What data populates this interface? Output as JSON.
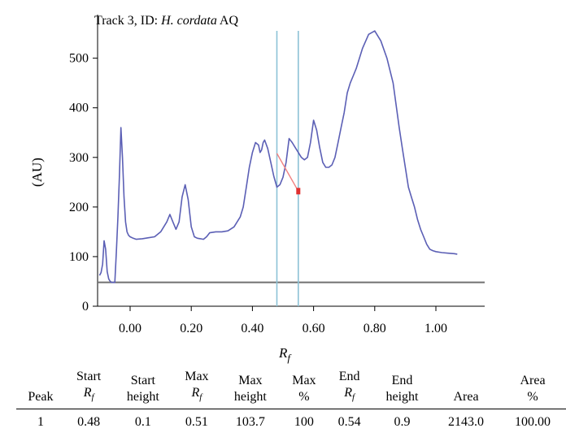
{
  "chart_data": {
    "type": "line",
    "title_prefix": "Track 3, ID: ",
    "title_species": "H. cordata",
    "title_suffix": " AQ",
    "xlabel_symbol": "R",
    "xlabel_subscript": "f",
    "ylabel": "(AU)",
    "xlim": [
      -0.12,
      1.17
    ],
    "ylim": [
      0,
      560
    ],
    "x_ticks": [
      "0.00",
      "0.20",
      "0.40",
      "0.60",
      "0.80",
      "1.00"
    ],
    "x_tick_values": [
      0.0,
      0.2,
      0.4,
      0.6,
      0.8,
      1.0
    ],
    "y_ticks": [
      "0",
      "100",
      "200",
      "300",
      "400",
      "500"
    ],
    "y_tick_values": [
      0,
      100,
      200,
      300,
      400,
      500
    ],
    "baseline": 48,
    "vertical_markers": [
      0.48,
      0.55
    ],
    "series": [
      {
        "color": "#5b5fb5",
        "x": [
          -0.1,
          -0.095,
          -0.09,
          -0.085,
          -0.08,
          -0.075,
          -0.07,
          -0.065,
          -0.06,
          -0.05,
          -0.045,
          -0.04,
          -0.035,
          -0.03,
          -0.025,
          -0.02,
          -0.015,
          -0.01,
          -0.005,
          0.0,
          0.01,
          0.02,
          0.04,
          0.06,
          0.08,
          0.1,
          0.12,
          0.13,
          0.14,
          0.15,
          0.16,
          0.17,
          0.18,
          0.19,
          0.2,
          0.21,
          0.22,
          0.23,
          0.24,
          0.25,
          0.26,
          0.28,
          0.3,
          0.32,
          0.34,
          0.36,
          0.37,
          0.38,
          0.39,
          0.4,
          0.41,
          0.42,
          0.425,
          0.43,
          0.435,
          0.44,
          0.45,
          0.46,
          0.47,
          0.48,
          0.49,
          0.5,
          0.51,
          0.52,
          0.53,
          0.54,
          0.55,
          0.56,
          0.57,
          0.58,
          0.59,
          0.6,
          0.61,
          0.62,
          0.63,
          0.64,
          0.65,
          0.66,
          0.67,
          0.68,
          0.69,
          0.7,
          0.705,
          0.71,
          0.72,
          0.73,
          0.74,
          0.75,
          0.76,
          0.78,
          0.8,
          0.82,
          0.84,
          0.86,
          0.88,
          0.89,
          0.9,
          0.91,
          0.92,
          0.93,
          0.94,
          0.95,
          0.96,
          0.97,
          0.98,
          0.99,
          1.0,
          1.02,
          1.04,
          1.06,
          1.07
        ],
        "y": [
          62,
          68,
          85,
          132,
          115,
          70,
          55,
          50,
          48,
          48,
          110,
          180,
          260,
          360,
          300,
          220,
          170,
          150,
          143,
          140,
          137,
          135,
          136,
          138,
          140,
          150,
          170,
          185,
          170,
          155,
          170,
          220,
          245,
          215,
          160,
          140,
          137,
          136,
          135,
          140,
          148,
          150,
          150,
          152,
          160,
          180,
          200,
          240,
          280,
          310,
          330,
          325,
          310,
          315,
          330,
          335,
          318,
          290,
          262,
          240,
          245,
          260,
          290,
          338,
          330,
          320,
          310,
          300,
          295,
          300,
          330,
          375,
          355,
          320,
          290,
          280,
          280,
          285,
          300,
          330,
          360,
          390,
          410,
          430,
          450,
          465,
          480,
          500,
          520,
          548,
          555,
          535,
          500,
          450,
          360,
          320,
          280,
          240,
          220,
          200,
          175,
          155,
          140,
          125,
          115,
          112,
          110,
          108,
          107,
          106,
          105
        ]
      }
    ],
    "highlight": {
      "line_color": "#f08080",
      "point_color": "#e03030",
      "x_start": 0.48,
      "y_start": 308,
      "x_end": 0.55,
      "y_end": 232
    }
  },
  "table": {
    "headers": [
      {
        "lines": [
          "Peak"
        ]
      },
      {
        "lines": [
          "Start"
        ],
        "rf": true
      },
      {
        "lines": [
          "Start",
          "height"
        ]
      },
      {
        "lines": [
          "Max"
        ],
        "rf": true
      },
      {
        "lines": [
          "Max",
          "height"
        ]
      },
      {
        "lines": [
          "Max",
          "%"
        ]
      },
      {
        "lines": [
          "End"
        ],
        "rf": true
      },
      {
        "lines": [
          "End",
          "height"
        ]
      },
      {
        "lines": [
          "Area"
        ]
      },
      {
        "lines": [
          "Area",
          "%"
        ]
      }
    ],
    "rows": [
      [
        "1",
        "0.48",
        "0.1",
        "0.51",
        "103.7",
        "100",
        "0.54",
        "0.9",
        "2143.0",
        "100.00"
      ]
    ]
  }
}
